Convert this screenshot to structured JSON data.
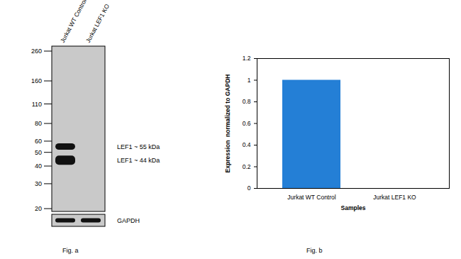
{
  "chart_data": {
    "type": "bar",
    "categories": [
      "Jurkat WT Control",
      "Jurkat LEF1 KO"
    ],
    "values": [
      1,
      0
    ],
    "color": "#247fd6",
    "ylim": [
      0,
      1.2
    ],
    "yticks": [
      0,
      0.2,
      0.4,
      0.6,
      0.8,
      1,
      1.2
    ],
    "y_label": "Expression  normalized to GAPDH",
    "x_label": "Samples",
    "grid": false,
    "caption": "Fig. b"
  },
  "blot": {
    "caption": "Fig. a",
    "lanes": [
      "Jurkat WT Control",
      "Jurkat LEF1 KO"
    ],
    "markers_kda": [
      260,
      160,
      110,
      80,
      60,
      50,
      40,
      30,
      20
    ],
    "bands": [
      {
        "label": "LEF1 ~ 55 kDa",
        "kda": 55,
        "intensity": [
          1,
          0
        ]
      },
      {
        "label": "LEF1 ~ 44 kDa",
        "kda": 44,
        "intensity": [
          1,
          0
        ]
      }
    ],
    "loading_control": {
      "label": "GAPDH",
      "intensity": [
        1,
        1
      ]
    }
  }
}
